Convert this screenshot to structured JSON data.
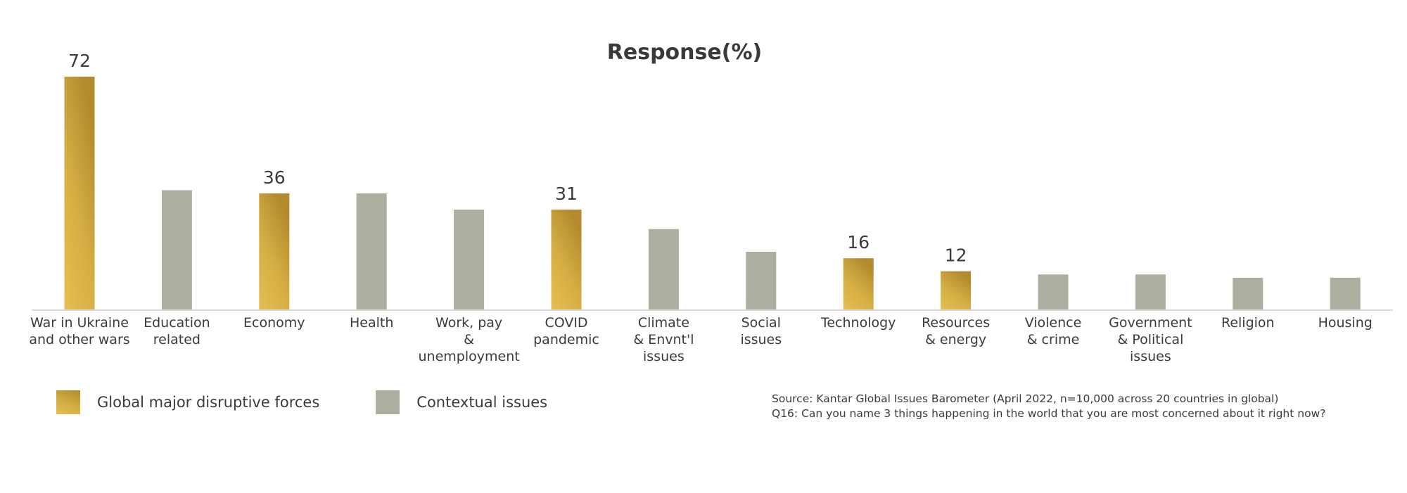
{
  "chart_data": {
    "type": "bar",
    "title": "Response(%)",
    "categories": [
      "War in Ukraine\nand other wars",
      "Education\nrelated",
      "Economy",
      "Health",
      "Work, pay\n&\nunemployment",
      "COVID\npandemic",
      "Climate\n& Envnt'l\nissues",
      "Social\nissues",
      "Technology",
      "Resources\n& energy",
      "Violence\n& crime",
      "Government\n& Political\nissues",
      "Religion",
      "Housing"
    ],
    "values": [
      72,
      37,
      36,
      36,
      31,
      31,
      25,
      18,
      16,
      12,
      11,
      11,
      10,
      10
    ],
    "groups": [
      "disruptive",
      "contextual",
      "disruptive",
      "contextual",
      "contextual",
      "disruptive",
      "contextual",
      "contextual",
      "disruptive",
      "disruptive",
      "contextual",
      "contextual",
      "contextual",
      "contextual"
    ],
    "data_labels": [
      "72",
      "",
      "36",
      "",
      "",
      "31",
      "",
      "",
      "16",
      "12",
      "",
      "",
      "",
      ""
    ],
    "ylim": [
      0,
      72
    ],
    "colors": {
      "disruptive_top": "#b38a2d",
      "disruptive_bottom": "#e6bf53",
      "contextual": "#adaea0",
      "axis": "#d9d9d9"
    }
  },
  "legend": {
    "disruptive": "Global major disruptive forces",
    "contextual": "Contextual issues"
  },
  "source": {
    "line1": "Source: Kantar Global Issues Barometer (April 2022, n=10,000 across 20 countries in global)",
    "line2": "Q16: Can you name 3 things happening in the world that you are most concerned about it right now?"
  }
}
